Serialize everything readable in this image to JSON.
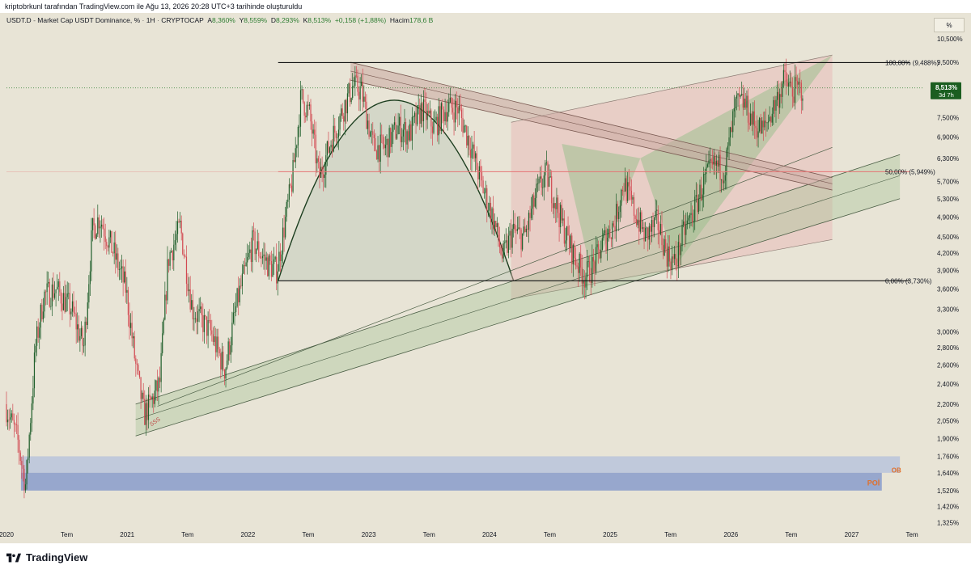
{
  "caption": "kriptobrkunl tarafından TradingView.com ile Ağu 13, 2026 20:28 UTC+3 tarihinde oluşturuldu",
  "legend": {
    "symbol": "USDT.D",
    "name": "Market Cap USDT Dominance, %",
    "interval": "1H",
    "exchange": "CRYPTOCAP",
    "open_label": "A",
    "open": "8,360%",
    "high_label": "Y",
    "high": "8,559%",
    "low_label": "D",
    "low": "8,293%",
    "close_label": "K",
    "close": "8,513%",
    "change": "+0,158 (+1,88%)",
    "volume_label": "Hacim",
    "volume": "178,6 B"
  },
  "scale_button": "%",
  "price_badge": {
    "value": "8,513%",
    "countdown": "3d 7h",
    "color": "#1b5e20"
  },
  "colors": {
    "bull": "#1e5e2a",
    "bear": "#d24a52",
    "background": "#e8e4d6",
    "range_box": "#e8b4b4",
    "channel": "#9dc08f",
    "poi": "#6b86c8",
    "fib_mid": "#e57373"
  },
  "fib_labels": {
    "top": "100,00% (9,488%)",
    "mid": "50,00% (5,949%)",
    "bottom": "0,00% (3,730%)"
  },
  "zone_labels": {
    "poi": "POİ",
    "ob": "OB",
    "sss": "SSS"
  },
  "chart_data": {
    "type": "candlestick",
    "y_scale": "log",
    "ylim": [
      1.3,
      10.8
    ],
    "y_ticks": [
      "10,500%",
      "9,500%",
      "8,500%",
      "7,500%",
      "6,900%",
      "6,300%",
      "5,700%",
      "5,300%",
      "4,900%",
      "4,500%",
      "4,200%",
      "3,900%",
      "3,600%",
      "3,300%",
      "3,000%",
      "2,800%",
      "2,600%",
      "2,400%",
      "2,200%",
      "2,050%",
      "1,900%",
      "1,760%",
      "1,640%",
      "1,520%",
      "1,420%",
      "1,325%"
    ],
    "x_ticks": [
      "2020",
      "Tem",
      "2021",
      "Tem",
      "2022",
      "Tem",
      "2023",
      "Tem",
      "2024",
      "Tem",
      "2025",
      "Tem",
      "2026",
      "Tem",
      "2027",
      "Tem"
    ],
    "x_tick_years": [
      2020.0,
      2020.5,
      2021.0,
      2021.5,
      2022.0,
      2022.5,
      2023.0,
      2023.5,
      2024.0,
      2024.5,
      2025.0,
      2025.5,
      2026.0,
      2026.5,
      2027.0,
      2027.5
    ],
    "fib_levels": {
      "top": 9.488,
      "mid": 5.949,
      "bottom": 3.73
    },
    "last_price": 8.513,
    "anchors": [
      [
        2020.0,
        2.2
      ],
      [
        2020.1,
        1.9
      ],
      [
        2020.17,
        1.55
      ],
      [
        2020.25,
        2.8
      ],
      [
        2020.32,
        3.5
      ],
      [
        2020.42,
        3.6
      ],
      [
        2020.55,
        3.3
      ],
      [
        2020.65,
        2.8
      ],
      [
        2020.72,
        4.6
      ],
      [
        2020.78,
        4.9
      ],
      [
        2020.9,
        4.2
      ],
      [
        2021.0,
        3.6
      ],
      [
        2021.08,
        2.6
      ],
      [
        2021.15,
        2.1
      ],
      [
        2021.2,
        2.2
      ],
      [
        2021.28,
        2.4
      ],
      [
        2021.35,
        4.1
      ],
      [
        2021.45,
        4.7
      ],
      [
        2021.55,
        3.3
      ],
      [
        2021.7,
        3.0
      ],
      [
        2021.82,
        2.55
      ],
      [
        2021.92,
        3.4
      ],
      [
        2022.05,
        4.4
      ],
      [
        2022.18,
        4.0
      ],
      [
        2022.25,
        3.9
      ],
      [
        2022.38,
        5.8
      ],
      [
        2022.45,
        8.2
      ],
      [
        2022.52,
        7.6
      ],
      [
        2022.6,
        5.8
      ],
      [
        2022.7,
        6.8
      ],
      [
        2022.8,
        7.8
      ],
      [
        2022.88,
        8.6
      ],
      [
        2022.95,
        8.4
      ],
      [
        2023.05,
        6.6
      ],
      [
        2023.15,
        6.6
      ],
      [
        2023.25,
        7.2
      ],
      [
        2023.35,
        7.0
      ],
      [
        2023.45,
        7.8
      ],
      [
        2023.55,
        7.2
      ],
      [
        2023.65,
        7.8
      ],
      [
        2023.75,
        7.8
      ],
      [
        2023.85,
        6.7
      ],
      [
        2023.95,
        5.6
      ],
      [
        2024.05,
        4.8
      ],
      [
        2024.12,
        4.1
      ],
      [
        2024.2,
        4.6
      ],
      [
        2024.3,
        4.5
      ],
      [
        2024.4,
        5.4
      ],
      [
        2024.48,
        5.9
      ],
      [
        2024.55,
        5.3
      ],
      [
        2024.62,
        4.7
      ],
      [
        2024.72,
        4.1
      ],
      [
        2024.8,
        3.8
      ],
      [
        2024.88,
        4.0
      ],
      [
        2024.95,
        4.4
      ],
      [
        2025.05,
        4.8
      ],
      [
        2025.12,
        5.7
      ],
      [
        2025.2,
        5.1
      ],
      [
        2025.3,
        4.5
      ],
      [
        2025.4,
        4.8
      ],
      [
        2025.48,
        4.2
      ],
      [
        2025.55,
        4.0
      ],
      [
        2025.62,
        4.6
      ],
      [
        2025.7,
        5.0
      ],
      [
        2025.8,
        5.8
      ],
      [
        2025.88,
        6.1
      ],
      [
        2025.96,
        6.0
      ],
      [
        2026.05,
        7.9
      ],
      [
        2026.12,
        8.0
      ],
      [
        2026.2,
        7.3
      ],
      [
        2026.28,
        7.1
      ],
      [
        2026.38,
        8.0
      ],
      [
        2026.45,
        8.8
      ],
      [
        2026.52,
        8.4
      ],
      [
        2026.6,
        8.5
      ]
    ]
  }
}
